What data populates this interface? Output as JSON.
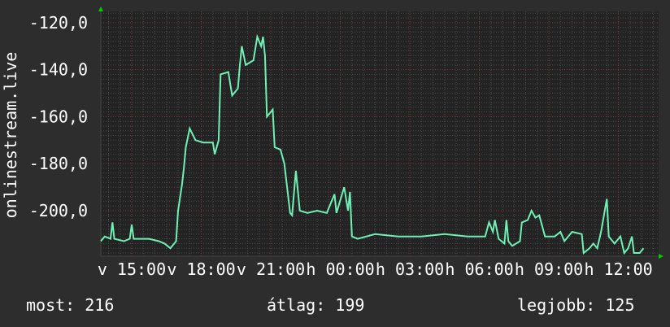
{
  "chart_data": {
    "type": "line",
    "ylabel": "onlinestream.live",
    "ylim": [
      -219.4,
      -115.2
    ],
    "y_ticks": [
      "-120,0",
      "-140,0",
      "-160,0",
      "-180,0",
      "-200,0"
    ],
    "y_tick_values": [
      -120,
      -140,
      -160,
      -180,
      -200
    ],
    "x_range": [
      "v 13:40",
      "h 13:44"
    ],
    "x_ticks": [
      {
        "at": "v 15:00",
        "label": "v 15:00"
      },
      {
        "at": "v 18:00",
        "label": "v 18:00"
      },
      {
        "at": "v 21:00",
        "label": "v 21:00"
      },
      {
        "at": "h 00:00",
        "label": "h 00:00"
      },
      {
        "at": "h 03:00",
        "label": "h 03:00"
      },
      {
        "at": "h 06:00",
        "label": "h 06:00"
      },
      {
        "at": "h 09:00",
        "label": "h 09:00"
      },
      {
        "at": "h 12:00",
        "label": "h 12:00"
      }
    ],
    "grid": true,
    "colors": {
      "background": "#2d2d2d",
      "plot": "#232323",
      "line": "#6ff0b4",
      "major_grid": "#7a3a3a",
      "minor_grid": "#4a4a4a",
      "arrow": "#00cc00"
    },
    "series": [
      {
        "points": [
          [
            "v 13:40",
            -213
          ],
          [
            "v 13:50",
            -211
          ],
          [
            "v 14:05",
            -212
          ],
          [
            "v 14:10",
            -205
          ],
          [
            "v 14:15",
            -212
          ],
          [
            "v 14:40",
            -213
          ],
          [
            "v 14:55",
            -212
          ],
          [
            "v 15:00",
            -206
          ],
          [
            "v 15:05",
            -212
          ],
          [
            "v 15:45",
            -212
          ],
          [
            "v 16:10",
            -213
          ],
          [
            "v 16:25",
            -214
          ],
          [
            "v 16:40",
            -216
          ],
          [
            "v 16:50",
            -214
          ],
          [
            "v 16:55",
            -213
          ],
          [
            "v 17:00",
            -200
          ],
          [
            "v 17:10",
            -189
          ],
          [
            "v 17:15",
            -182
          ],
          [
            "v 17:20",
            -173
          ],
          [
            "v 17:30",
            -165
          ],
          [
            "v 17:45",
            -170
          ],
          [
            "v 18:05",
            -171
          ],
          [
            "v 18:30",
            -171
          ],
          [
            "v 18:35",
            -176
          ],
          [
            "v 18:45",
            -170
          ],
          [
            "v 18:50",
            -142
          ],
          [
            "v 19:10",
            -141
          ],
          [
            "v 19:20",
            -151
          ],
          [
            "v 19:35",
            -148
          ],
          [
            "v 19:40",
            -138
          ],
          [
            "v 19:45",
            -130
          ],
          [
            "v 19:55",
            -138
          ],
          [
            "v 20:15",
            -136
          ],
          [
            "v 20:25",
            -126
          ],
          [
            "v 20:35",
            -130
          ],
          [
            "v 20:40",
            -126
          ],
          [
            "v 20:45",
            -134
          ],
          [
            "v 20:50",
            -160
          ],
          [
            "v 21:05",
            -157
          ],
          [
            "v 21:10",
            -173
          ],
          [
            "v 21:25",
            -174
          ],
          [
            "v 21:35",
            -180
          ],
          [
            "v 21:50",
            -201
          ],
          [
            "v 21:55",
            -202
          ],
          [
            "v 22:05",
            -183
          ],
          [
            "v 22:15",
            -200
          ],
          [
            "v 22:35",
            -201
          ],
          [
            "v 23:00",
            -200
          ],
          [
            "v 23:25",
            -201
          ],
          [
            "v 23:45",
            -193
          ],
          [
            "v 23:50",
            -201
          ],
          [
            "h 00:10",
            -190
          ],
          [
            "h 00:20",
            -200
          ],
          [
            "h 00:25",
            -192
          ],
          [
            "h 00:30",
            -211
          ],
          [
            "h 00:45",
            -212
          ],
          [
            "h 01:30",
            -210
          ],
          [
            "h 02:30",
            -211
          ],
          [
            "h 03:30",
            -211
          ],
          [
            "h 04:30",
            -210
          ],
          [
            "h 05:30",
            -211
          ],
          [
            "h 06:15",
            -211
          ],
          [
            "h 06:25",
            -205
          ],
          [
            "h 06:35",
            -209
          ],
          [
            "h 06:40",
            -204
          ],
          [
            "h 06:50",
            -212
          ],
          [
            "h 07:05",
            -214
          ],
          [
            "h 07:10",
            -204
          ],
          [
            "h 07:15",
            -213
          ],
          [
            "h 07:25",
            -215
          ],
          [
            "h 07:45",
            -213
          ],
          [
            "h 07:50",
            -205
          ],
          [
            "h 08:05",
            -204
          ],
          [
            "h 08:15",
            -200
          ],
          [
            "h 08:25",
            -203
          ],
          [
            "h 08:35",
            -202
          ],
          [
            "h 08:50",
            -211
          ],
          [
            "h 09:15",
            -211
          ],
          [
            "h 09:30",
            -209
          ],
          [
            "h 09:40",
            -213
          ],
          [
            "h 10:00",
            -209
          ],
          [
            "h 10:25",
            -210
          ],
          [
            "h 10:30",
            -218
          ],
          [
            "h 10:45",
            -216
          ],
          [
            "h 10:55",
            -214
          ],
          [
            "h 11:05",
            -216
          ],
          [
            "h 11:15",
            -209
          ],
          [
            "h 11:30",
            -195
          ],
          [
            "h 11:35",
            -211
          ],
          [
            "h 11:50",
            -214
          ],
          [
            "h 12:05",
            -211
          ],
          [
            "h 12:15",
            -218
          ],
          [
            "h 12:25",
            -216
          ],
          [
            "h 12:35",
            -211
          ],
          [
            "h 12:40",
            -218
          ],
          [
            "h 12:55",
            -218
          ],
          [
            "h 13:05",
            -216
          ]
        ]
      }
    ]
  },
  "footer": {
    "current": "most: 216",
    "average": "átlag: 199",
    "best": "legjobb: 125"
  }
}
